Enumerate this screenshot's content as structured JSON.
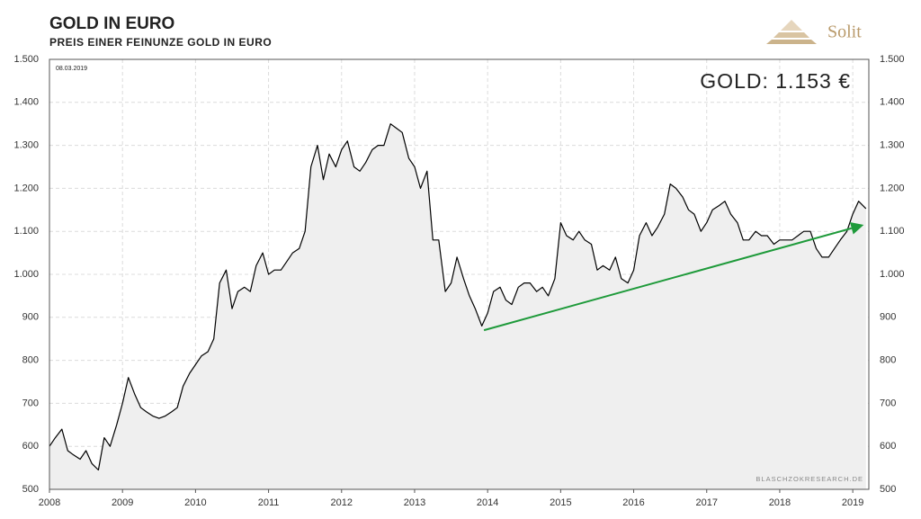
{
  "chart_data": {
    "type": "line",
    "title": "GOLD IN EURO",
    "subtitle": "PREIS EINER FEINUNZE GOLD IN EURO",
    "logo": "Solit",
    "date_label": "08.03.2019",
    "annotation": "GOLD: 1.153 €",
    "source": "BLASCHZOKRESEARCH.DE",
    "grid": true,
    "xlim": [
      2008,
      2019.22
    ],
    "xticks": [
      2008,
      2009,
      2010,
      2011,
      2012,
      2013,
      2014,
      2015,
      2016,
      2017,
      2018,
      2019
    ],
    "ylim": [
      500,
      1500
    ],
    "yticks": [
      {
        "value": 500,
        "label": "500"
      },
      {
        "value": 600,
        "label": "600"
      },
      {
        "value": 700,
        "label": "700"
      },
      {
        "value": 800,
        "label": "800"
      },
      {
        "value": 900,
        "label": "900"
      },
      {
        "value": 1000,
        "label": "1.000"
      },
      {
        "value": 1100,
        "label": "1.100"
      },
      {
        "value": 1200,
        "label": "1.200"
      },
      {
        "value": 1300,
        "label": "1.300"
      },
      {
        "value": 1400,
        "label": "1.400"
      },
      {
        "value": 1500,
        "label": "1.500"
      }
    ],
    "y2lim": [
      500,
      1500
    ],
    "y2ticks": [
      {
        "value": 500,
        "label": "500"
      },
      {
        "value": 600,
        "label": "600"
      },
      {
        "value": 700,
        "label": "700"
      },
      {
        "value": 800,
        "label": "800"
      },
      {
        "value": 900,
        "label": "900"
      },
      {
        "value": 1000,
        "label": "1.000"
      },
      {
        "value": 1100,
        "label": "1.100"
      },
      {
        "value": 1200,
        "label": "1.200"
      },
      {
        "value": 1300,
        "label": "1.300"
      },
      {
        "value": 1400,
        "label": "1.400"
      },
      {
        "value": 1500,
        "label": "1.500"
      }
    ],
    "x": [
      2008.0,
      2008.08,
      2008.17,
      2008.25,
      2008.33,
      2008.42,
      2008.5,
      2008.58,
      2008.67,
      2008.75,
      2008.83,
      2008.92,
      2009.0,
      2009.08,
      2009.17,
      2009.25,
      2009.33,
      2009.42,
      2009.5,
      2009.58,
      2009.67,
      2009.75,
      2009.83,
      2009.92,
      2010.0,
      2010.08,
      2010.17,
      2010.25,
      2010.33,
      2010.42,
      2010.5,
      2010.58,
      2010.67,
      2010.75,
      2010.83,
      2010.92,
      2011.0,
      2011.08,
      2011.17,
      2011.25,
      2011.33,
      2011.42,
      2011.5,
      2011.58,
      2011.67,
      2011.75,
      2011.83,
      2011.92,
      2012.0,
      2012.08,
      2012.17,
      2012.25,
      2012.33,
      2012.42,
      2012.5,
      2012.58,
      2012.67,
      2012.75,
      2012.83,
      2012.92,
      2013.0,
      2013.08,
      2013.17,
      2013.25,
      2013.33,
      2013.42,
      2013.5,
      2013.58,
      2013.67,
      2013.75,
      2013.83,
      2013.92,
      2014.0,
      2014.08,
      2014.17,
      2014.25,
      2014.33,
      2014.42,
      2014.5,
      2014.58,
      2014.67,
      2014.75,
      2014.83,
      2014.92,
      2015.0,
      2015.08,
      2015.17,
      2015.25,
      2015.33,
      2015.42,
      2015.5,
      2015.58,
      2015.67,
      2015.75,
      2015.83,
      2015.92,
      2016.0,
      2016.08,
      2016.17,
      2016.25,
      2016.33,
      2016.42,
      2016.5,
      2016.58,
      2016.67,
      2016.75,
      2016.83,
      2016.92,
      2017.0,
      2017.08,
      2017.17,
      2017.25,
      2017.33,
      2017.42,
      2017.5,
      2017.58,
      2017.67,
      2017.75,
      2017.83,
      2017.92,
      2018.0,
      2018.08,
      2018.17,
      2018.25,
      2018.33,
      2018.42,
      2018.5,
      2018.58,
      2018.67,
      2018.75,
      2018.83,
      2018.92,
      2019.0,
      2019.08,
      2019.18
    ],
    "series": [
      {
        "name": "Gold",
        "color": "#000000",
        "fill": "#efefef",
        "values": [
          600,
          620,
          640,
          590,
          580,
          570,
          590,
          560,
          545,
          620,
          600,
          650,
          700,
          760,
          720,
          690,
          680,
          670,
          665,
          670,
          680,
          690,
          740,
          770,
          790,
          810,
          820,
          850,
          980,
          1010,
          920,
          960,
          970,
          960,
          1020,
          1050,
          1000,
          1010,
          1010,
          1030,
          1050,
          1060,
          1100,
          1250,
          1300,
          1220,
          1280,
          1250,
          1290,
          1310,
          1250,
          1240,
          1260,
          1290,
          1300,
          1300,
          1350,
          1340,
          1330,
          1270,
          1250,
          1200,
          1240,
          1080,
          1080,
          960,
          980,
          1040,
          990,
          950,
          920,
          880,
          910,
          960,
          970,
          940,
          930,
          970,
          980,
          980,
          960,
          970,
          950,
          990,
          1120,
          1090,
          1080,
          1100,
          1080,
          1070,
          1010,
          1020,
          1010,
          1040,
          990,
          980,
          1010,
          1090,
          1120,
          1090,
          1110,
          1140,
          1210,
          1200,
          1180,
          1150,
          1140,
          1100,
          1120,
          1150,
          1160,
          1170,
          1140,
          1120,
          1080,
          1080,
          1100,
          1090,
          1090,
          1070,
          1080,
          1080,
          1080,
          1090,
          1100,
          1100,
          1060,
          1040,
          1040,
          1060,
          1080,
          1100,
          1140,
          1170,
          1153
        ]
      }
    ],
    "trend_arrow": {
      "color": "#1e9a3a",
      "x": [
        2013.95,
        2019.15
      ],
      "y": [
        870,
        1115
      ]
    }
  }
}
